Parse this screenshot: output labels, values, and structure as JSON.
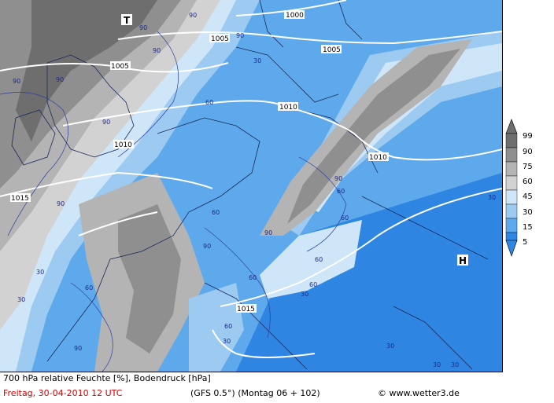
{
  "map": {
    "isobars": [
      {
        "value": "1000"
      },
      {
        "value": "1005"
      },
      {
        "value": "1005"
      },
      {
        "value": "1010"
      },
      {
        "value": "1010"
      },
      {
        "value": "1010"
      },
      {
        "value": "1015"
      },
      {
        "value": "1015"
      }
    ],
    "humidity_labels": [
      "90",
      "90",
      "90",
      "90",
      "90",
      "90",
      "90",
      "90",
      "90",
      "90",
      "90",
      "60",
      "60",
      "60",
      "60",
      "60",
      "60",
      "60",
      "60",
      "60",
      "30",
      "30",
      "30",
      "30",
      "30",
      "30",
      "30",
      "30",
      "90",
      "30"
    ],
    "pressure_centers": [
      {
        "symbol": "T",
        "type": "low"
      },
      {
        "symbol": "H",
        "type": "high"
      }
    ]
  },
  "legend": {
    "scale": [
      "99",
      "90",
      "75",
      "60",
      "45",
      "30",
      "15",
      "5"
    ],
    "colors": [
      "#6e6e6e",
      "#8f8f8f",
      "#b4b4b4",
      "#d2d2d2",
      "#cfe6f8",
      "#9ccaf1",
      "#5ea9ec",
      "#2f86e2"
    ]
  },
  "footer": {
    "title": "700 hPa relative Feuchte [%], Bodendruck [hPa]",
    "date": "Freitag, 30-04-2010  12 UTC",
    "model": "(GFS 0.5°)  (Montag 06 + 102)",
    "credit": "© www.wetter3.de"
  }
}
